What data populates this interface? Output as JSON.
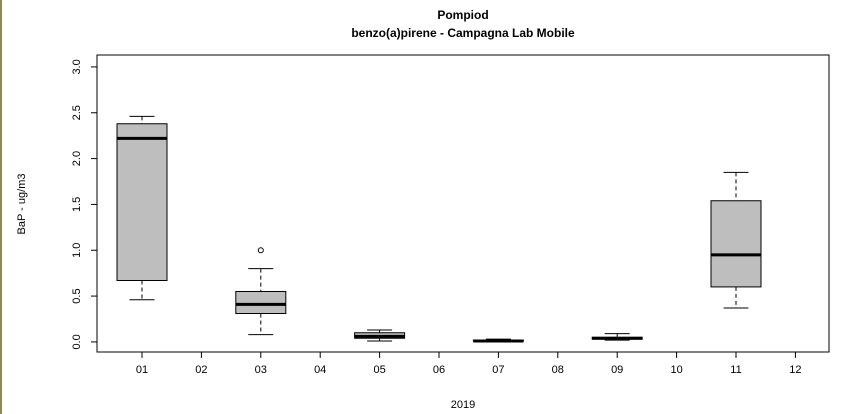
{
  "chart_data": {
    "type": "box",
    "title": "Pompiod",
    "subtitle": "benzo(a)pirene - Campagna Lab Mobile",
    "xlabel": "2019",
    "ylabel": "BaP - ug/m3",
    "categories": [
      "01",
      "02",
      "03",
      "04",
      "05",
      "06",
      "07",
      "08",
      "09",
      "10",
      "11",
      "12"
    ],
    "boxes": [
      {
        "min": 0.46,
        "q1": 0.67,
        "median": 2.22,
        "q3": 2.38,
        "max": 2.46,
        "outliers": []
      },
      null,
      {
        "min": 0.08,
        "q1": 0.31,
        "median": 0.41,
        "q3": 0.55,
        "max": 0.8,
        "outliers": [
          1.0
        ]
      },
      null,
      {
        "min": 0.01,
        "q1": 0.04,
        "median": 0.06,
        "q3": 0.1,
        "max": 0.13,
        "outliers": []
      },
      null,
      {
        "min": 0.0,
        "q1": 0.01,
        "median": 0.01,
        "q3": 0.02,
        "max": 0.03,
        "outliers": []
      },
      null,
      {
        "min": 0.02,
        "q1": 0.03,
        "median": 0.04,
        "q3": 0.05,
        "max": 0.09,
        "outliers": []
      },
      null,
      {
        "min": 0.37,
        "q1": 0.6,
        "median": 0.95,
        "q3": 1.54,
        "max": 1.85,
        "outliers": []
      },
      null
    ],
    "color": "#bebebe",
    "ylim": [
      -0.11,
      3.13
    ],
    "yticks": [
      {
        "value": 0,
        "label": "0.0"
      },
      0.5,
      {
        "value": 1,
        "label": "1.0"
      },
      1.5,
      {
        "value": 2,
        "label": "2.0"
      },
      2.5,
      {
        "value": 3,
        "label": "3.0"
      }
    ],
    "grid": false
  }
}
